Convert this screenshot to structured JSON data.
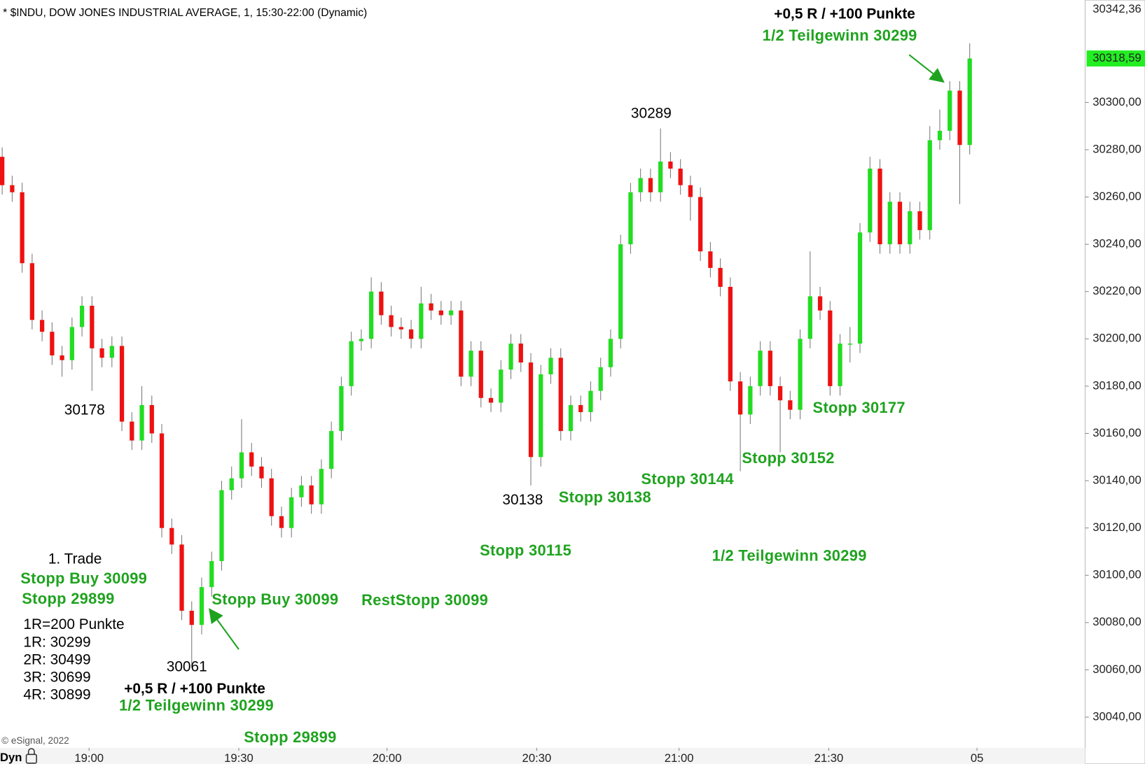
{
  "chart_data": {
    "type": "candlestick",
    "title": "* $INDU, DOW JONES INDUSTRIAL AVERAGE, 1, 15:30-22:00 (Dynamic)",
    "up_color": "#22dd22",
    "down_color": "#ee1111",
    "open": [
      30277,
      30265,
      30262,
      30232,
      30208,
      30203,
      30193,
      30191,
      30205,
      30214,
      30196,
      30192,
      30197,
      30165,
      30157,
      30172,
      30160,
      30120,
      30113,
      30085,
      30079,
      30095,
      30106,
      30136,
      30141,
      30152,
      30146,
      30141,
      30125,
      30120,
      30133,
      30138,
      30130,
      30145,
      30161,
      30180,
      30199,
      30200,
      30220,
      30210,
      30205,
      30204,
      30200,
      30215,
      30212,
      30210,
      30212,
      30184,
      30195,
      30175,
      30173,
      30187,
      30198,
      30190,
      30150,
      30185,
      30192,
      30161,
      30172,
      30169,
      30178,
      30188,
      30200,
      30240,
      30262,
      30268,
      30262,
      30275,
      30272,
      30265,
      30260,
      30237,
      30230,
      30222,
      30182,
      30168,
      30180,
      30195,
      30180,
      30174,
      30170,
      30200,
      30218,
      30212,
      30180,
      30198,
      30198,
      30245,
      30272,
      30240,
      30258,
      30240,
      30254,
      30246,
      30284,
      30288,
      30305,
      30282
    ],
    "high": [
      30281,
      30269,
      30266,
      30236,
      30212,
      30207,
      30197,
      30209,
      30218,
      30218,
      30200,
      30201,
      30201,
      30169,
      30180,
      30176,
      30164,
      30124,
      30117,
      30089,
      30099,
      30110,
      30140,
      30146,
      30166,
      30156,
      30150,
      30145,
      30129,
      30137,
      30142,
      30142,
      30149,
      30165,
      30184,
      30203,
      30204,
      30226,
      30224,
      30214,
      30209,
      30208,
      30222,
      30219,
      30216,
      30216,
      30216,
      30199,
      30199,
      30179,
      30191,
      30202,
      30202,
      30194,
      30189,
      30196,
      30196,
      30176,
      30176,
      30182,
      30192,
      30204,
      30244,
      30266,
      30272,
      30272,
      30289,
      30279,
      30276,
      30269,
      30264,
      30241,
      30234,
      30226,
      30186,
      30184,
      30199,
      30199,
      30184,
      30178,
      30204,
      30237,
      30222,
      30216,
      30202,
      30205,
      30249,
      30277,
      30276,
      30262,
      30262,
      30258,
      30258,
      30290,
      30297,
      30309,
      30309,
      30325
    ],
    "low": [
      30261,
      30258,
      30228,
      30204,
      30199,
      30189,
      30184,
      30187,
      30201,
      30178,
      30188,
      30188,
      30161,
      30153,
      30153,
      30156,
      30116,
      30109,
      30081,
      30061,
      30075,
      30091,
      30102,
      30132,
      30137,
      30142,
      30137,
      30121,
      30116,
      30116,
      30129,
      30126,
      30126,
      30141,
      30157,
      30176,
      30195,
      30196,
      30206,
      30201,
      30200,
      30196,
      30196,
      30208,
      30206,
      30206,
      30180,
      30180,
      30171,
      30169,
      30169,
      30183,
      30186,
      30138,
      30146,
      30181,
      30157,
      30157,
      30165,
      30165,
      30174,
      30184,
      30196,
      30236,
      30258,
      30258,
      30258,
      30268,
      30261,
      30250,
      30233,
      30226,
      30218,
      30178,
      30144,
      30164,
      30176,
      30176,
      30152,
      30166,
      30166,
      30196,
      30208,
      30176,
      30176,
      30190,
      30194,
      30241,
      30236,
      30236,
      30236,
      30236,
      30242,
      30242,
      30280,
      30284,
      30257,
      30278
    ],
    "close": [
      30265,
      30262,
      30232,
      30208,
      30203,
      30193,
      30191,
      30205,
      30214,
      30196,
      30192,
      30197,
      30165,
      30157,
      30172,
      30160,
      30120,
      30113,
      30085,
      30079,
      30095,
      30106,
      30136,
      30141,
      30152,
      30146,
      30141,
      30125,
      30120,
      30133,
      30138,
      30130,
      30145,
      30161,
      30180,
      30199,
      30200,
      30220,
      30210,
      30205,
      30204,
      30200,
      30215,
      30212,
      30210,
      30212,
      30184,
      30195,
      30175,
      30173,
      30187,
      30198,
      30190,
      30150,
      30185,
      30192,
      30161,
      30172,
      30169,
      30178,
      30188,
      30200,
      30240,
      30262,
      30268,
      30262,
      30275,
      30272,
      30265,
      30260,
      30237,
      30230,
      30222,
      30182,
      30168,
      30180,
      30195,
      30180,
      30174,
      30170,
      30200,
      30218,
      30212,
      30180,
      30198,
      30198,
      30245,
      30272,
      30240,
      30258,
      30240,
      30254,
      30246,
      30284,
      30288,
      30305,
      30282,
      30318.59
    ],
    "xlim": [
      -0.22,
      108.57
    ],
    "xticks": [
      {
        "value": 8.71,
        "label": "19:00"
      },
      {
        "value": 23.72,
        "label": "19:30"
      },
      {
        "value": 38.58,
        "label": "20:00"
      },
      {
        "value": 53.59,
        "label": "20:30"
      },
      {
        "value": 67.86,
        "label": "21:00"
      },
      {
        "value": 82.87,
        "label": "21:30"
      },
      {
        "value": 97.73,
        "label": "05"
      }
    ],
    "ylim": [
      30027,
      30342.36
    ],
    "yticks": [
      {
        "value": 30040,
        "label": "30040,00"
      },
      {
        "value": 30060,
        "label": "30060,00"
      },
      {
        "value": 30080,
        "label": "30080,00"
      },
      {
        "value": 30100,
        "label": "30100,00"
      },
      {
        "value": 30120,
        "label": "30120,00"
      },
      {
        "value": 30140,
        "label": "30140,00"
      },
      {
        "value": 30160,
        "label": "30160,00"
      },
      {
        "value": 30180,
        "label": "30180,00"
      },
      {
        "value": 30200,
        "label": "30200,00"
      },
      {
        "value": 30220,
        "label": "30220,00"
      },
      {
        "value": 30240,
        "label": "30240,00"
      },
      {
        "value": 30260,
        "label": "30260,00"
      },
      {
        "value": 30280,
        "label": "30280,00"
      },
      {
        "value": 30300,
        "label": "30300,00"
      }
    ],
    "top_label": {
      "value": 30342.36,
      "label": "30342,36"
    },
    "last_price": {
      "value": 30318.59,
      "label": "30318,59",
      "color": "#22ee22"
    },
    "annotations": [
      "30178",
      "1. Trade",
      "Stopp Buy 30099",
      "Stopp 29899",
      "1R=200 Punkte",
      "1R: 30299",
      "2R: 30499",
      "3R: 30699",
      "4R: 30899",
      "30061",
      "+0,5 R / +100 Punkte",
      "1/2 Teilgewinn 30299",
      "Stopp 29899",
      "Stopp Buy 30099",
      "RestStopp 30099",
      "Stopp 30115",
      "30138",
      "Stopp 30138",
      "30289",
      "Stopp 30144",
      "Stopp 30152",
      "1/2 Teilgewinn 30299",
      "Stopp 30177",
      "+0,5 R / +100 Punkte",
      "1/2 Teilgewinn 30299"
    ],
    "footer": "© eSignal, 2022",
    "mode": "Dyn"
  }
}
